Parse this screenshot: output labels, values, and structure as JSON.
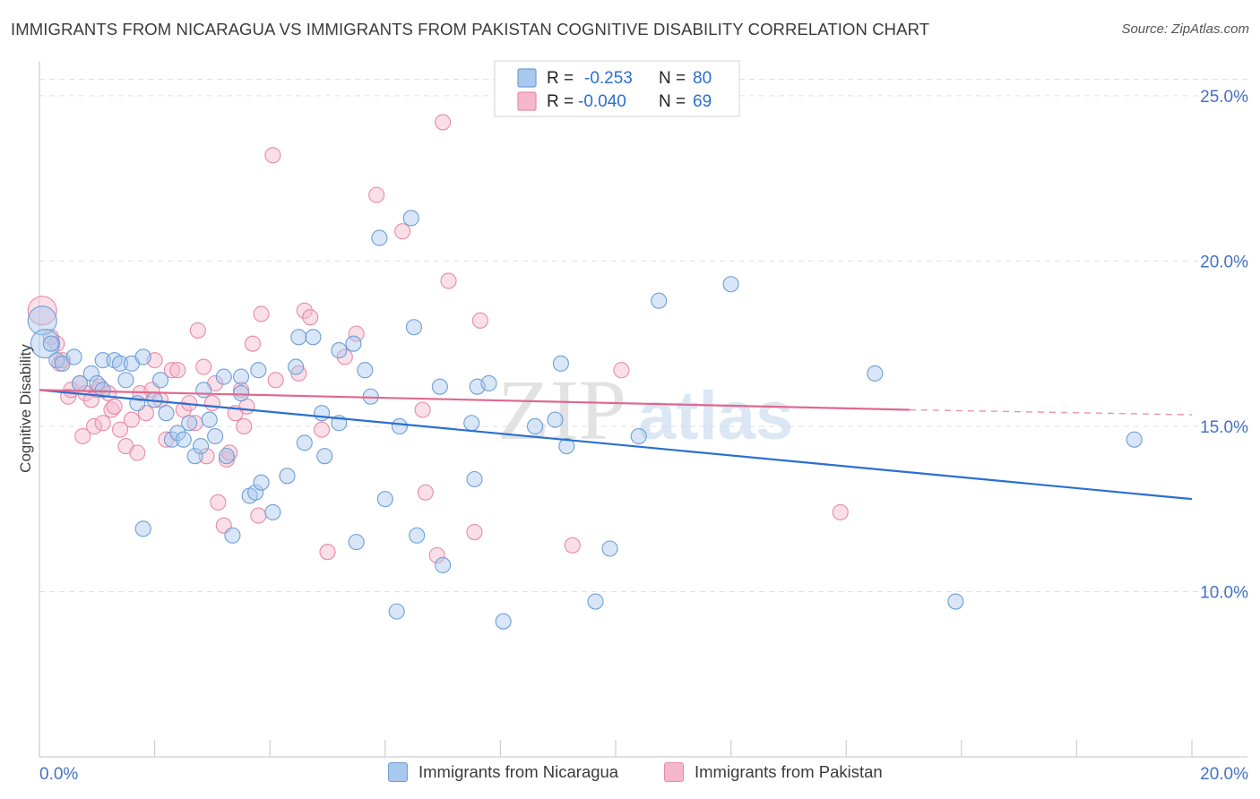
{
  "title": "IMMIGRANTS FROM NICARAGUA VS IMMIGRANTS FROM PAKISTAN COGNITIVE DISABILITY CORRELATION CHART",
  "source": "Source: ZipAtlas.com",
  "watermark": {
    "zip": "ZIP",
    "atlas": "atlas"
  },
  "colors": {
    "blue_fill": "#a8c8ee",
    "blue_stroke": "#6e9fd6",
    "blue_line": "#2a6fcf",
    "pink_fill": "#f5b8cb",
    "pink_stroke": "#e88aa6",
    "pink_line": "#e0688e",
    "tick_label": "#4472c4",
    "grid": "#e1e1e1"
  },
  "legend": {
    "rows": [
      {
        "r_label": "R = ",
        "r_value": "-0.253",
        "n_label": "N = ",
        "n_value": "80"
      },
      {
        "r_label": "R = ",
        "r_value": "-0.040",
        "n_label": "N = ",
        "n_value": "69"
      }
    ]
  },
  "bottom_legend": [
    "Immigrants from Nicaragua",
    "Immigrants from Pakistan"
  ],
  "chart_data": {
    "type": "scatter",
    "title": "IMMIGRANTS FROM NICARAGUA VS IMMIGRANTS FROM PAKISTAN COGNITIVE DISABILITY CORRELATION CHART",
    "xlabel": "",
    "ylabel": "Cognitive Disability",
    "xlim": [
      0,
      20
    ],
    "ylim": [
      5,
      26
    ],
    "x_tick_labels": [
      "0.0%",
      "20.0%"
    ],
    "x_tick_values": [
      0,
      20
    ],
    "y_tick_labels": [
      "10.0%",
      "15.0%",
      "20.0%",
      "25.0%"
    ],
    "y_tick_values": [
      10,
      15,
      20,
      25
    ],
    "grid": true,
    "legend_position": "top-center",
    "series": [
      {
        "name": "Immigrants from Nicaragua",
        "r": -0.253,
        "n": 80,
        "trend": {
          "x": [
            0,
            20
          ],
          "y": [
            16.1,
            12.8
          ]
        },
        "points": [
          {
            "x": 0.05,
            "y": 18.2,
            "big": true
          },
          {
            "x": 0.1,
            "y": 17.5,
            "big": true
          },
          {
            "x": 0.2,
            "y": 17.5
          },
          {
            "x": 0.3,
            "y": 17.0
          },
          {
            "x": 0.4,
            "y": 16.9
          },
          {
            "x": 0.6,
            "y": 17.1
          },
          {
            "x": 0.7,
            "y": 16.3
          },
          {
            "x": 0.9,
            "y": 16.6
          },
          {
            "x": 1.0,
            "y": 16.3
          },
          {
            "x": 1.1,
            "y": 16.1
          },
          {
            "x": 1.1,
            "y": 17.0
          },
          {
            "x": 1.3,
            "y": 17.0
          },
          {
            "x": 1.4,
            "y": 16.9
          },
          {
            "x": 1.5,
            "y": 16.4
          },
          {
            "x": 1.6,
            "y": 16.9
          },
          {
            "x": 1.7,
            "y": 15.7
          },
          {
            "x": 1.8,
            "y": 17.1
          },
          {
            "x": 1.8,
            "y": 11.9
          },
          {
            "x": 2.0,
            "y": 15.8
          },
          {
            "x": 2.1,
            "y": 16.4
          },
          {
            "x": 2.2,
            "y": 15.4
          },
          {
            "x": 2.3,
            "y": 14.6
          },
          {
            "x": 2.4,
            "y": 14.8
          },
          {
            "x": 2.5,
            "y": 14.6
          },
          {
            "x": 2.6,
            "y": 15.1
          },
          {
            "x": 2.7,
            "y": 14.1
          },
          {
            "x": 2.8,
            "y": 14.4
          },
          {
            "x": 2.85,
            "y": 16.1
          },
          {
            "x": 2.95,
            "y": 15.2
          },
          {
            "x": 3.05,
            "y": 14.7
          },
          {
            "x": 3.2,
            "y": 16.5
          },
          {
            "x": 3.25,
            "y": 14.1
          },
          {
            "x": 3.35,
            "y": 11.7
          },
          {
            "x": 3.5,
            "y": 16.0
          },
          {
            "x": 3.5,
            "y": 16.5
          },
          {
            "x": 3.65,
            "y": 12.9
          },
          {
            "x": 3.75,
            "y": 13.0
          },
          {
            "x": 3.8,
            "y": 16.7
          },
          {
            "x": 3.85,
            "y": 13.3
          },
          {
            "x": 4.05,
            "y": 12.4
          },
          {
            "x": 4.3,
            "y": 13.5
          },
          {
            "x": 4.45,
            "y": 16.8
          },
          {
            "x": 4.5,
            "y": 17.7
          },
          {
            "x": 4.6,
            "y": 14.5
          },
          {
            "x": 4.75,
            "y": 17.7
          },
          {
            "x": 4.9,
            "y": 15.4
          },
          {
            "x": 4.95,
            "y": 14.1
          },
          {
            "x": 5.2,
            "y": 17.3
          },
          {
            "x": 5.2,
            "y": 15.1
          },
          {
            "x": 5.45,
            "y": 17.5
          },
          {
            "x": 5.5,
            "y": 11.5
          },
          {
            "x": 5.65,
            "y": 16.7
          },
          {
            "x": 5.75,
            "y": 15.9
          },
          {
            "x": 5.9,
            "y": 20.7
          },
          {
            "x": 6.0,
            "y": 12.8
          },
          {
            "x": 6.2,
            "y": 9.4
          },
          {
            "x": 6.25,
            "y": 15.0
          },
          {
            "x": 6.45,
            "y": 21.3
          },
          {
            "x": 6.5,
            "y": 18.0
          },
          {
            "x": 6.55,
            "y": 11.7
          },
          {
            "x": 6.95,
            "y": 16.2
          },
          {
            "x": 7.0,
            "y": 10.8
          },
          {
            "x": 7.5,
            "y": 15.1
          },
          {
            "x": 7.55,
            "y": 13.4
          },
          {
            "x": 7.6,
            "y": 16.2
          },
          {
            "x": 7.8,
            "y": 16.3
          },
          {
            "x": 8.05,
            "y": 9.1
          },
          {
            "x": 8.6,
            "y": 15.0
          },
          {
            "x": 8.95,
            "y": 15.2
          },
          {
            "x": 9.05,
            "y": 16.9
          },
          {
            "x": 9.15,
            "y": 14.4
          },
          {
            "x": 9.65,
            "y": 9.7
          },
          {
            "x": 9.9,
            "y": 11.3
          },
          {
            "x": 10.4,
            "y": 14.7
          },
          {
            "x": 10.75,
            "y": 18.8
          },
          {
            "x": 12.0,
            "y": 19.3
          },
          {
            "x": 14.5,
            "y": 16.6
          },
          {
            "x": 15.9,
            "y": 9.7
          },
          {
            "x": 19.0,
            "y": 14.6
          }
        ]
      },
      {
        "name": "Immigrants from Pakistan",
        "r": -0.04,
        "n": 69,
        "trend": {
          "x": [
            0,
            15.1
          ],
          "y": [
            16.1,
            15.5
          ]
        },
        "trend_dashed": {
          "x": [
            15.1,
            20
          ],
          "y": [
            15.5,
            15.35
          ]
        },
        "points": [
          {
            "x": 0.05,
            "y": 18.5,
            "big": true
          },
          {
            "x": 0.2,
            "y": 17.7
          },
          {
            "x": 0.3,
            "y": 17.5
          },
          {
            "x": 0.35,
            "y": 16.9
          },
          {
            "x": 0.4,
            "y": 17.0
          },
          {
            "x": 0.5,
            "y": 15.9
          },
          {
            "x": 0.55,
            "y": 16.1
          },
          {
            "x": 0.7,
            "y": 16.3
          },
          {
            "x": 0.75,
            "y": 14.7
          },
          {
            "x": 0.8,
            "y": 16.0
          },
          {
            "x": 0.9,
            "y": 15.8
          },
          {
            "x": 0.95,
            "y": 15.0
          },
          {
            "x": 1.0,
            "y": 16.1
          },
          {
            "x": 1.05,
            "y": 16.2
          },
          {
            "x": 1.1,
            "y": 15.1
          },
          {
            "x": 1.2,
            "y": 16.0
          },
          {
            "x": 1.25,
            "y": 15.5
          },
          {
            "x": 1.3,
            "y": 15.6
          },
          {
            "x": 1.4,
            "y": 14.9
          },
          {
            "x": 1.5,
            "y": 14.4
          },
          {
            "x": 1.6,
            "y": 15.2
          },
          {
            "x": 1.7,
            "y": 14.2
          },
          {
            "x": 1.75,
            "y": 16.0
          },
          {
            "x": 1.85,
            "y": 15.4
          },
          {
            "x": 1.95,
            "y": 16.1
          },
          {
            "x": 2.0,
            "y": 17.0
          },
          {
            "x": 2.1,
            "y": 15.8
          },
          {
            "x": 2.2,
            "y": 14.6
          },
          {
            "x": 2.3,
            "y": 16.7
          },
          {
            "x": 2.4,
            "y": 16.7
          },
          {
            "x": 2.5,
            "y": 15.5
          },
          {
            "x": 2.6,
            "y": 15.7
          },
          {
            "x": 2.7,
            "y": 15.1
          },
          {
            "x": 2.75,
            "y": 17.9
          },
          {
            "x": 2.85,
            "y": 16.8
          },
          {
            "x": 2.9,
            "y": 14.1
          },
          {
            "x": 3.0,
            "y": 15.7
          },
          {
            "x": 3.05,
            "y": 16.3
          },
          {
            "x": 3.1,
            "y": 12.7
          },
          {
            "x": 3.2,
            "y": 12.0
          },
          {
            "x": 3.25,
            "y": 14.0
          },
          {
            "x": 3.3,
            "y": 14.2
          },
          {
            "x": 3.4,
            "y": 15.4
          },
          {
            "x": 3.5,
            "y": 16.1
          },
          {
            "x": 3.55,
            "y": 15.0
          },
          {
            "x": 3.6,
            "y": 15.6
          },
          {
            "x": 3.7,
            "y": 17.5
          },
          {
            "x": 3.8,
            "y": 12.3
          },
          {
            "x": 3.85,
            "y": 18.4
          },
          {
            "x": 4.05,
            "y": 23.2
          },
          {
            "x": 4.1,
            "y": 16.4
          },
          {
            "x": 4.5,
            "y": 16.6
          },
          {
            "x": 4.6,
            "y": 18.5
          },
          {
            "x": 4.7,
            "y": 18.3
          },
          {
            "x": 4.9,
            "y": 14.9
          },
          {
            "x": 5.0,
            "y": 11.2
          },
          {
            "x": 5.3,
            "y": 17.1
          },
          {
            "x": 5.5,
            "y": 17.8
          },
          {
            "x": 5.85,
            "y": 22.0
          },
          {
            "x": 6.3,
            "y": 20.9
          },
          {
            "x": 6.65,
            "y": 15.5
          },
          {
            "x": 6.7,
            "y": 13.0
          },
          {
            "x": 6.9,
            "y": 11.1
          },
          {
            "x": 7.0,
            "y": 24.2
          },
          {
            "x": 7.1,
            "y": 19.4
          },
          {
            "x": 7.55,
            "y": 11.8
          },
          {
            "x": 7.65,
            "y": 18.2
          },
          {
            "x": 9.25,
            "y": 11.4
          },
          {
            "x": 10.1,
            "y": 16.7
          },
          {
            "x": 13.9,
            "y": 12.4
          }
        ]
      }
    ]
  }
}
